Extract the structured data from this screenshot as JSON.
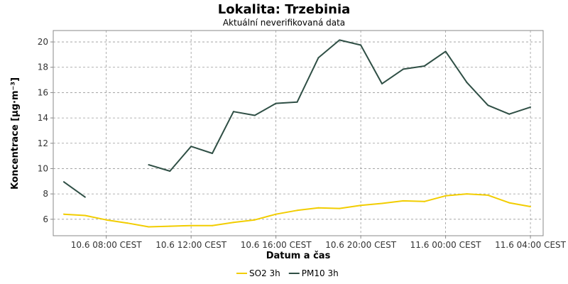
{
  "chart_data": {
    "type": "line",
    "title": "Lokalita: Trzebinia",
    "subtitle": "Aktuální neverifikovaná data",
    "xlabel": "Datum a čas",
    "ylabel": "Koncentrace [µg·m⁻³]",
    "ylim": [
      4.7,
      20.9
    ],
    "yticks": [
      6,
      8,
      10,
      12,
      14,
      16,
      18,
      20
    ],
    "x_tick_labels": [
      "10.6 08:00 CEST",
      "10.6 12:00 CEST",
      "10.6 16:00 CEST",
      "10.6 20:00 CEST",
      "11.6 00:00 CEST",
      "11.6 04:00 CEST"
    ],
    "x_tick_hours": [
      8,
      12,
      16,
      20,
      24,
      28
    ],
    "x_hours": [
      6,
      7,
      8,
      9,
      10,
      11,
      12,
      13,
      14,
      15,
      16,
      17,
      18,
      19,
      20,
      21,
      22,
      23,
      24,
      25,
      26,
      27,
      28
    ],
    "xlim": [
      5.5,
      28.6
    ],
    "grid": true,
    "legend_position": "bottom",
    "series": [
      {
        "name": "SO2 3h",
        "color": "#f2cd00",
        "values": [
          6.4,
          6.3,
          5.95,
          5.7,
          5.4,
          5.45,
          5.5,
          5.5,
          5.75,
          5.95,
          6.4,
          6.7,
          6.9,
          6.85,
          7.1,
          7.25,
          7.45,
          7.4,
          7.85,
          8.0,
          7.9,
          7.3,
          7.0
        ]
      },
      {
        "name": "PM10 3h",
        "color": "#2f4f45",
        "values": [
          8.95,
          7.75,
          null,
          null,
          10.3,
          9.8,
          11.75,
          11.2,
          14.5,
          14.2,
          15.15,
          15.25,
          18.75,
          20.15,
          19.75,
          16.7,
          17.85,
          18.1,
          19.25,
          16.8,
          15.0,
          14.3,
          14.85
        ]
      }
    ]
  }
}
